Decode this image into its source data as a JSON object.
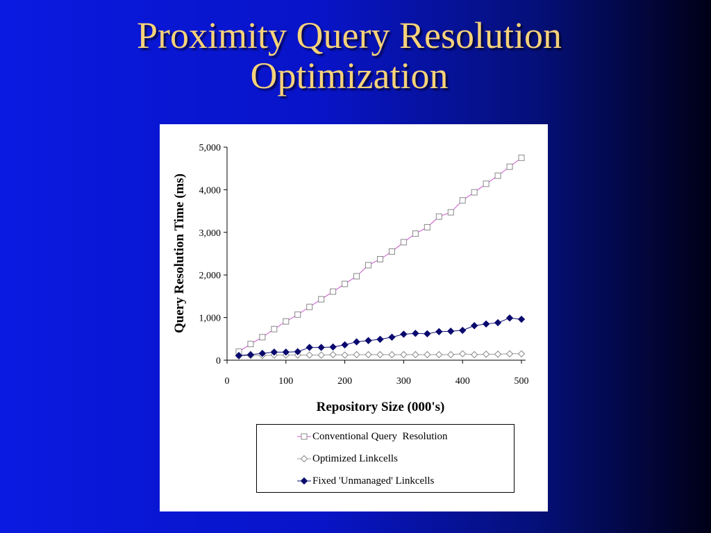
{
  "slide": {
    "title_line1": "Proximity Query Resolution",
    "title_line2": "Optimization"
  },
  "colors": {
    "title": "#f6d27a",
    "conventional": "#cc55cc",
    "optimized": "#999999",
    "fixed": "#0a0a6e"
  },
  "chart_data": {
    "type": "line",
    "xlabel": "Repository Size (000's)",
    "ylabel": "Query Resolution Time (ms)",
    "xlim": [
      0,
      500
    ],
    "ylim": [
      0,
      5000
    ],
    "x_ticks": [
      "0",
      "100",
      "200",
      "300",
      "400",
      "500"
    ],
    "y_ticks": [
      "0",
      "1,000",
      "2,000",
      "3,000",
      "4,000",
      "5,000"
    ],
    "grid": false,
    "legend_position": "bottom",
    "x": [
      20,
      40,
      60,
      80,
      100,
      120,
      140,
      160,
      180,
      200,
      220,
      240,
      260,
      280,
      300,
      320,
      340,
      360,
      380,
      400,
      420,
      440,
      460,
      480,
      500
    ],
    "series": [
      {
        "name": "Conventional Query  Resolution",
        "marker": "open-square",
        "values": [
          200,
          380,
          540,
          730,
          910,
          1070,
          1250,
          1430,
          1610,
          1790,
          1970,
          2230,
          2370,
          2550,
          2770,
          2970,
          3120,
          3370,
          3470,
          3750,
          3940,
          4140,
          4330,
          4540,
          4750
        ]
      },
      {
        "name": "Optimized Linkcells",
        "marker": "open-diamond",
        "values": [
          100,
          110,
          110,
          120,
          120,
          120,
          120,
          120,
          130,
          120,
          130,
          130,
          130,
          130,
          130,
          130,
          130,
          130,
          130,
          150,
          130,
          140,
          140,
          150,
          150
        ]
      },
      {
        "name": "Fixed 'Unmanaged' Linkcells",
        "marker": "filled-diamond",
        "values": [
          110,
          130,
          160,
          190,
          190,
          200,
          300,
          300,
          310,
          360,
          430,
          460,
          490,
          540,
          610,
          630,
          620,
          670,
          680,
          700,
          810,
          850,
          880,
          990,
          960
        ]
      }
    ]
  }
}
